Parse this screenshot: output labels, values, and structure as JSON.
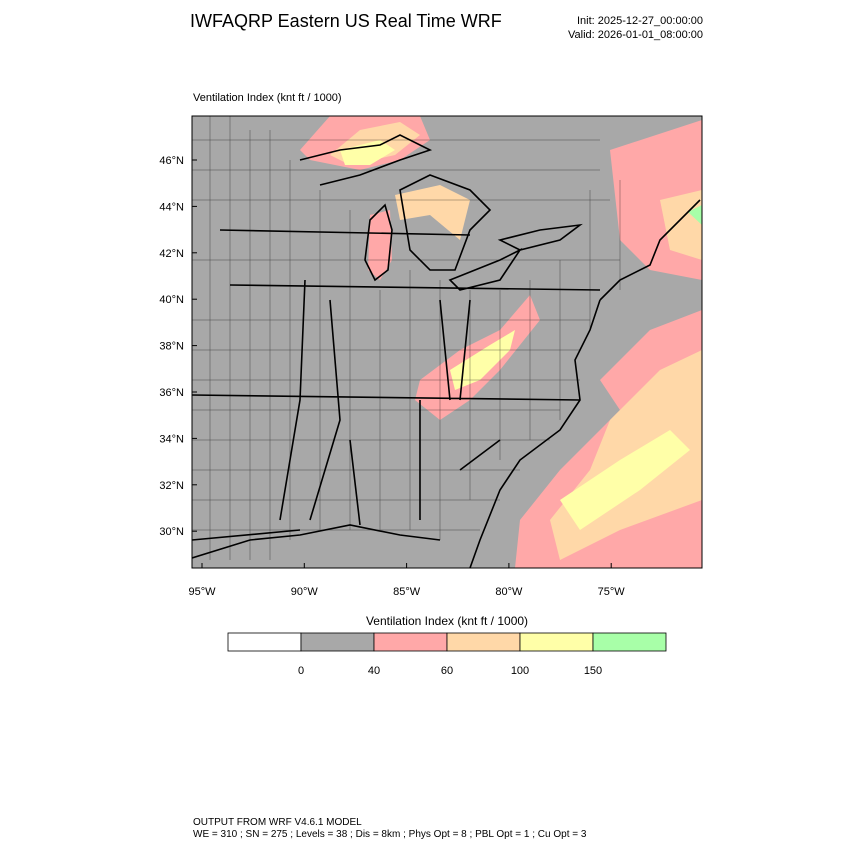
{
  "header": {
    "title": "IWFAQRP Eastern US Real Time WRF",
    "init": "Init: 2025-12-27_00:00:00",
    "valid": "Valid: 2026-01-01_08:00:00"
  },
  "map": {
    "title": "Ventilation Index   (knt ft / 1000)",
    "lat_labels": [
      "46°N",
      "44°N",
      "42°N",
      "40°N",
      "38°N",
      "36°N",
      "34°N",
      "32°N",
      "30°N"
    ],
    "lon_labels": [
      "95°W",
      "90°W",
      "85°W",
      "80°W",
      "75°W"
    ]
  },
  "colorbar": {
    "title": "Ventilation Index  (knt ft / 1000)",
    "colors": [
      "#ffffff",
      "#a8a8a8",
      "#ffa8a8",
      "#ffd8a8",
      "#ffffa8",
      "#a8ffa8"
    ],
    "labels": [
      "0",
      "40",
      "60",
      "100",
      "150"
    ]
  },
  "footer": {
    "line1": "OUTPUT FROM WRF V4.6.1 MODEL",
    "line2": "WE = 310 ; SN = 275 ; Levels = 38 ; Dis = 8km ; Phys Opt = 8 ; PBL Opt = 1 ; Cu Opt = 3"
  }
}
